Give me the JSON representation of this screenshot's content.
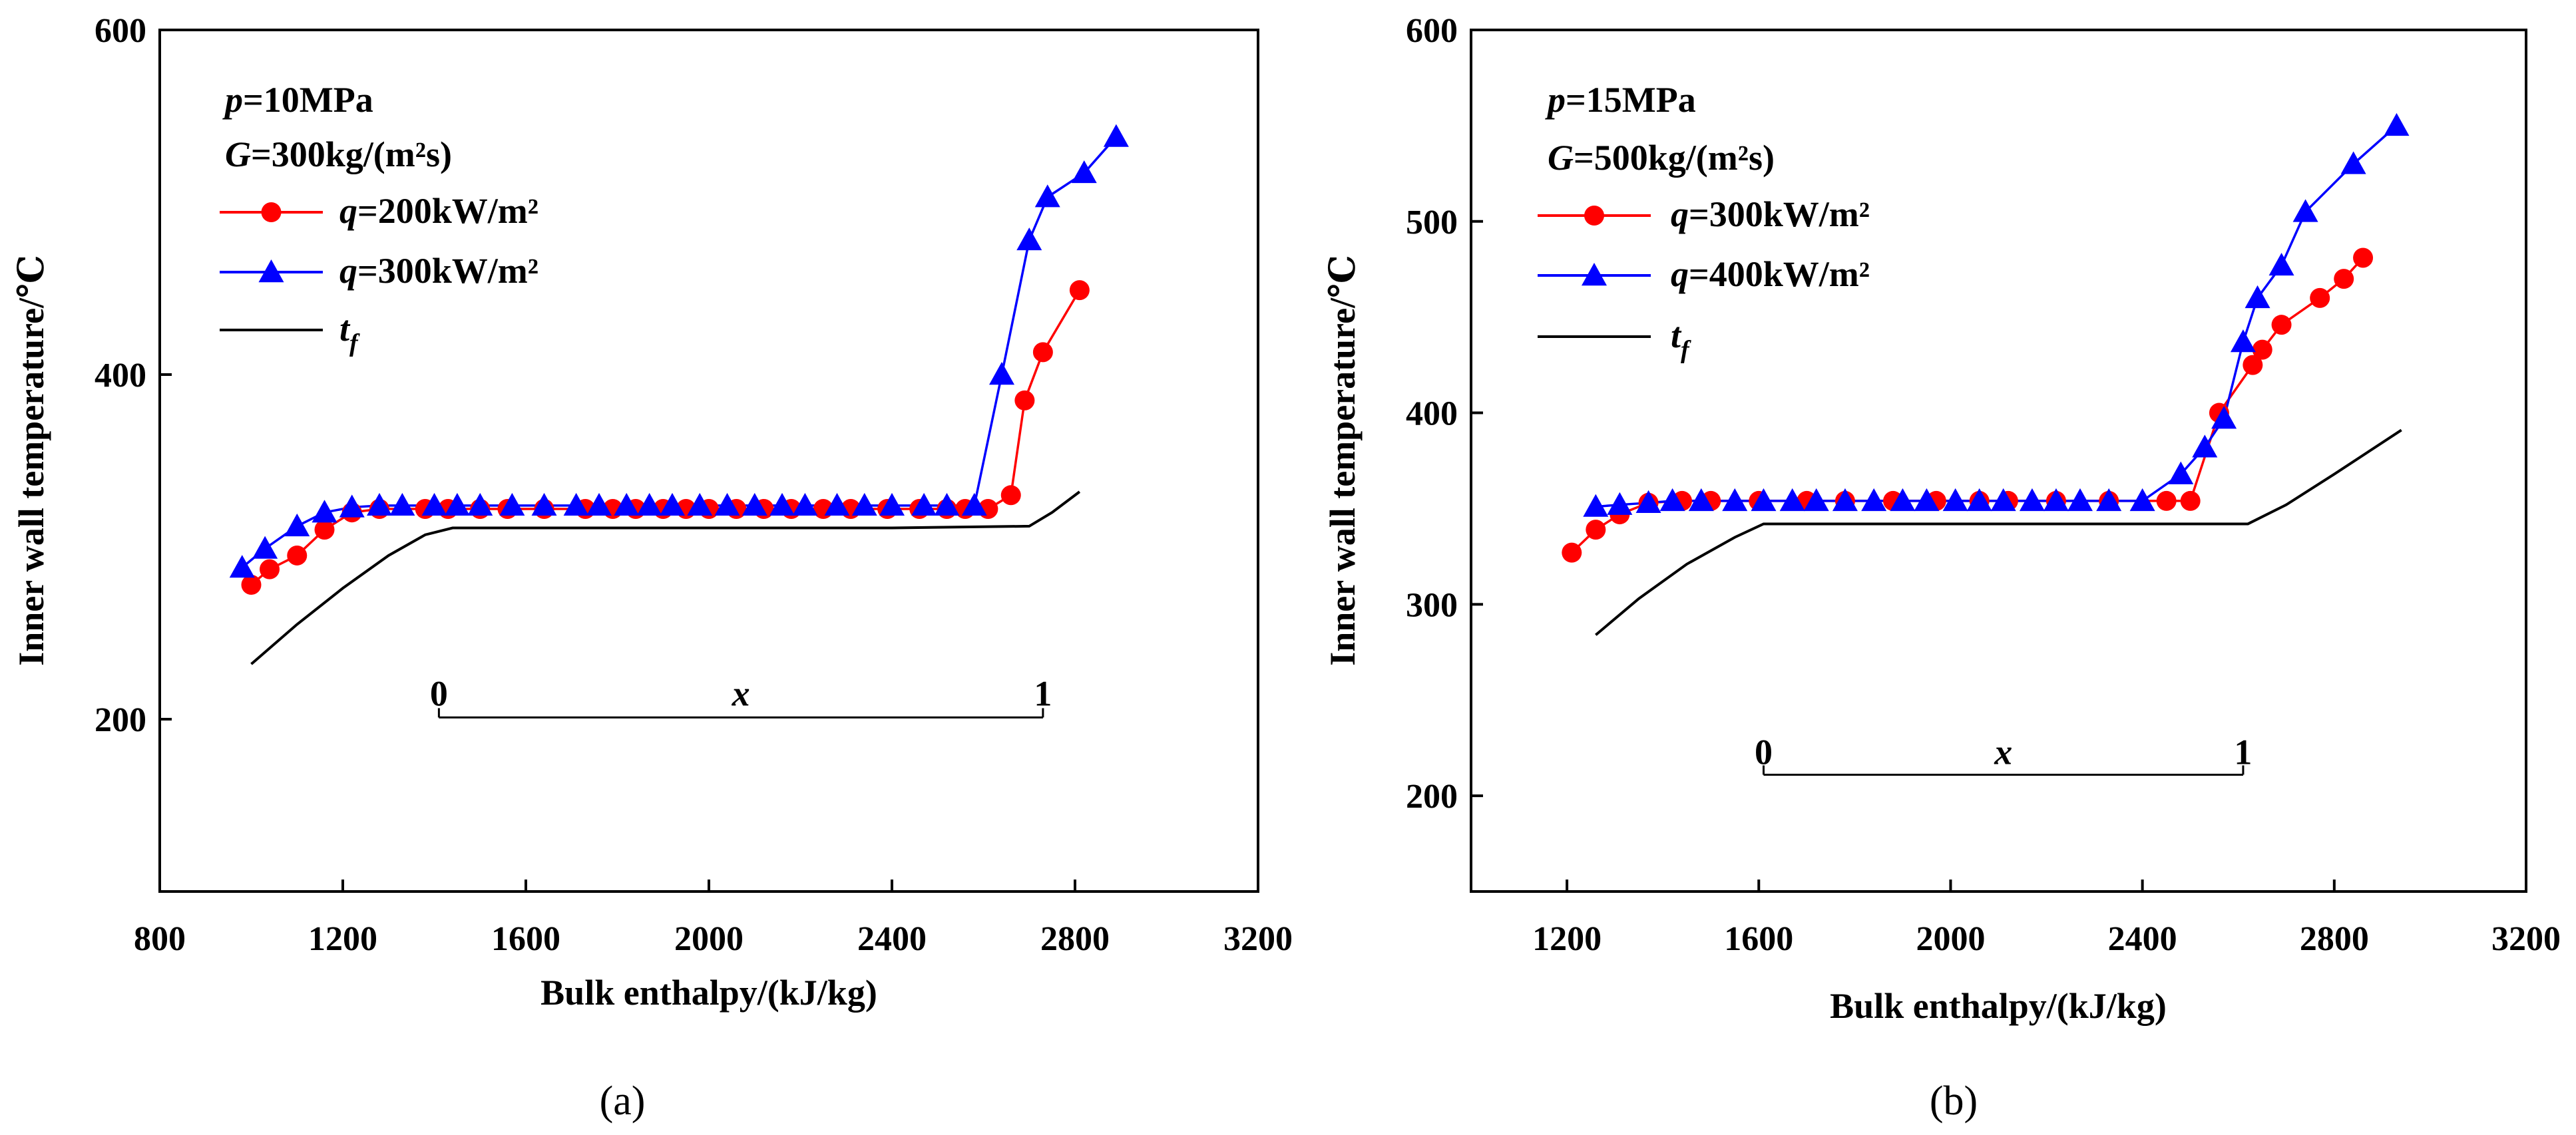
{
  "chart_data": [
    {
      "type": "line",
      "panel_label": "(a)",
      "xlabel": "Bulk enthalpy/(kJ/kg)",
      "ylabel": "Inner wall temperature/℃",
      "xlim": [
        800,
        3200
      ],
      "ylim": [
        100,
        600
      ],
      "xticks": [
        "800",
        "1200",
        "1600",
        "2000",
        "2400",
        "2800",
        "3200"
      ],
      "yticks": [
        "200",
        "400",
        "600"
      ],
      "annotation_lines": [
        {
          "var": "p",
          "text": "=10MPa"
        },
        {
          "var": "G",
          "text": "=300kg/(m²s)"
        }
      ],
      "series": [
        {
          "name": "q=200kW/m²",
          "var": "q",
          "text": "=200kW/m²",
          "color": "#ff0000",
          "marker": "circle",
          "x": [
            1000,
            1040,
            1100,
            1160,
            1220,
            1280,
            1380,
            1430,
            1500,
            1560,
            1640,
            1730,
            1790,
            1840,
            1900,
            1950,
            2000,
            2060,
            2120,
            2180,
            2250,
            2310,
            2390,
            2460,
            2520,
            2560,
            2610,
            2660,
            2690,
            2730,
            2810
          ],
          "y": [
            278,
            287,
            295,
            310,
            320,
            322,
            322,
            322,
            322,
            322,
            322,
            322,
            322,
            322,
            322,
            322,
            322,
            322,
            322,
            322,
            322,
            322,
            322,
            322,
            322,
            322,
            322,
            330,
            385,
            413,
            449
          ]
        },
        {
          "name": "q=300kW/m²",
          "var": "q",
          "text": "=300kW/m²",
          "color": "#0000ff",
          "marker": "triangle",
          "x": [
            980,
            1030,
            1100,
            1160,
            1220,
            1280,
            1330,
            1400,
            1450,
            1500,
            1570,
            1640,
            1710,
            1760,
            1820,
            1870,
            1920,
            1980,
            2040,
            2100,
            2160,
            2210,
            2280,
            2340,
            2400,
            2470,
            2520,
            2580,
            2640,
            2700,
            2740,
            2820,
            2890
          ],
          "y": [
            288,
            299,
            312,
            320,
            323,
            324,
            324,
            324,
            324,
            324,
            324,
            324,
            324,
            324,
            324,
            324,
            324,
            324,
            324,
            324,
            324,
            324,
            324,
            324,
            324,
            324,
            324,
            324,
            400,
            478,
            503,
            517,
            538
          ]
        },
        {
          "name": "t_f",
          "var": "t",
          "sub": "f",
          "color": "#000000",
          "marker": "none",
          "x": [
            1000,
            1100,
            1200,
            1300,
            1380,
            1440,
            1600,
            2000,
            2400,
            2700,
            2750,
            2810
          ],
          "y": [
            232,
            255,
            276,
            295,
            307,
            311,
            311,
            311,
            311,
            312,
            320,
            332
          ]
        }
      ],
      "quality_bar": {
        "x_start": 1410,
        "x_end": 2730,
        "y": 201,
        "left_label": "0",
        "center_label": "x",
        "right_label": "1"
      }
    },
    {
      "type": "line",
      "panel_label": "(b)",
      "xlabel": "Bulk enthalpy/(kJ/kg)",
      "ylabel": "Inner wall temperature/℃",
      "xlim": [
        1000,
        3200
      ],
      "ylim": [
        150,
        600
      ],
      "xticks": [
        "1200",
        "1600",
        "2000",
        "2400",
        "2800",
        "3200"
      ],
      "yticks": [
        "200",
        "300",
        "400",
        "500",
        "600"
      ],
      "annotation_lines": [
        {
          "var": "p",
          "text": "=15MPa"
        },
        {
          "var": "G",
          "text": "=500kg/(m²s)"
        }
      ],
      "series": [
        {
          "name": "q=300kW/m²",
          "var": "q",
          "text": "=300kW/m²",
          "color": "#ff0000",
          "marker": "circle",
          "x": [
            1210,
            1260,
            1310,
            1370,
            1440,
            1500,
            1600,
            1700,
            1780,
            1880,
            1970,
            2060,
            2120,
            2220,
            2330,
            2450,
            2500,
            2560,
            2630,
            2650,
            2690,
            2770,
            2820,
            2860
          ],
          "y": [
            327,
            339,
            347,
            353,
            354,
            354,
            354,
            354,
            354,
            354,
            354,
            354,
            354,
            354,
            354,
            354,
            354,
            400,
            425,
            433,
            446,
            460,
            470,
            481
          ],
          "_note": "red plotted values"
        },
        {
          "name": "q=400kW/m²",
          "var": "q",
          "text": "=400kW/m²",
          "color": "#0000ff",
          "marker": "triangle",
          "x": [
            1260,
            1310,
            1370,
            1420,
            1480,
            1550,
            1610,
            1670,
            1720,
            1780,
            1840,
            1900,
            1950,
            2010,
            2060,
            2110,
            2170,
            2220,
            2270,
            2330,
            2400,
            2480,
            2530,
            2570,
            2610,
            2640,
            2690,
            2740,
            2840,
            2930
          ],
          "y": [
            351,
            352,
            353,
            354,
            354,
            354,
            354,
            354,
            354,
            354,
            354,
            354,
            354,
            354,
            354,
            354,
            354,
            354,
            354,
            354,
            354,
            368,
            382,
            397,
            437,
            460,
            477,
            505,
            530,
            550
          ]
        },
        {
          "name": "t_f",
          "var": "t",
          "sub": "f",
          "color": "#000000",
          "marker": "none",
          "x": [
            1260,
            1350,
            1450,
            1550,
            1610,
            1700,
            2000,
            2400,
            2620,
            2700,
            2800,
            2940
          ],
          "y": [
            284,
            303,
            321,
            335,
            342,
            342,
            342,
            342,
            342,
            352,
            368,
            391
          ]
        }
      ],
      "quality_bar": {
        "x_start": 1610,
        "x_end": 2610,
        "y": 211,
        "left_label": "0",
        "center_label": "x",
        "right_label": "1"
      }
    }
  ]
}
